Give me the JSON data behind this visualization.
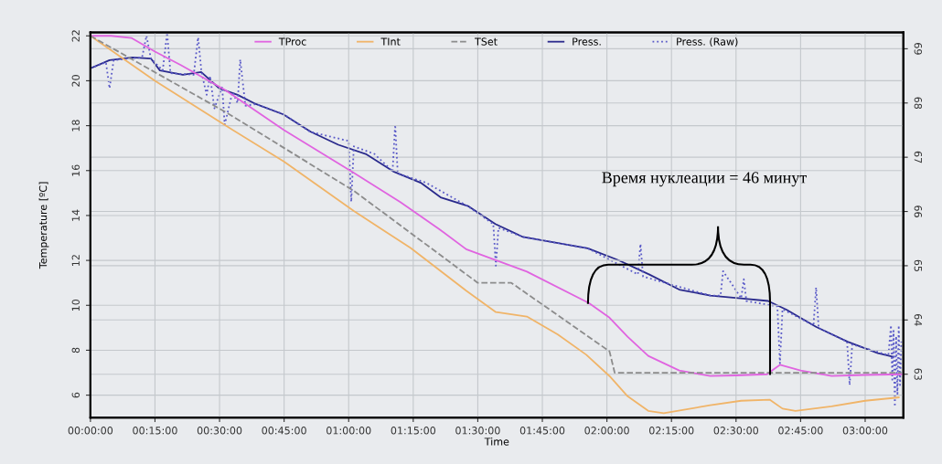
{
  "chart_data": {
    "type": "line",
    "xlabel": "Time",
    "ylabel": "Temperature [ºC]",
    "xlim": [
      0,
      3.148
    ],
    "ylim": [
      5.0,
      22.15
    ],
    "y2lim": [
      62.2,
      69.3
    ],
    "xticks": [
      {
        "value": 0,
        "label": "00:00:00"
      },
      {
        "value": 0.25,
        "label": "00:15:00"
      },
      {
        "value": 0.5,
        "label": "00:30:00"
      },
      {
        "value": 0.75,
        "label": "00:45:00"
      },
      {
        "value": 1.0,
        "label": "01:00:00"
      },
      {
        "value": 1.25,
        "label": "01:15:00"
      },
      {
        "value": 1.5,
        "label": "01:30:00"
      },
      {
        "value": 1.75,
        "label": "01:45:00"
      },
      {
        "value": 2.0,
        "label": "02:00:00"
      },
      {
        "value": 2.25,
        "label": "02:15:00"
      },
      {
        "value": 2.5,
        "label": "02:30:00"
      },
      {
        "value": 2.75,
        "label": "02:45:00"
      },
      {
        "value": 3.0,
        "label": "03:00:00"
      }
    ],
    "yticks": [
      6,
      8,
      10,
      12,
      14,
      16,
      18,
      20,
      22
    ],
    "y2ticks": [
      63,
      64,
      65,
      66,
      67,
      68,
      69
    ],
    "grid": true,
    "legend": "top",
    "marker": "none",
    "annotations": [
      "Время нуклеации = 46 минут"
    ],
    "series": [
      {
        "name": "TProc",
        "color": "#e064e0",
        "line_style": "solid",
        "x": [
          0,
          0.08,
          0.16,
          0.25,
          0.35,
          0.52,
          0.75,
          1.02,
          1.2,
          1.35,
          1.455,
          1.69,
          1.93,
          2.01,
          2.08,
          2.16,
          2.28,
          2.4,
          2.5,
          2.62,
          2.64,
          2.67,
          2.75,
          2.87,
          3.0,
          3.14
        ],
        "values": [
          22.0,
          22.0,
          21.9,
          21.3,
          20.7,
          19.6,
          17.8,
          15.9,
          14.6,
          13.4,
          12.5,
          11.5,
          10.1,
          9.45,
          8.6,
          7.75,
          7.1,
          6.85,
          6.88,
          6.93,
          7.1,
          7.35,
          7.1,
          6.85,
          6.9,
          6.93
        ]
      },
      {
        "name": "TInt",
        "color": "#f0b468",
        "line_style": "solid",
        "x": [
          0,
          0.25,
          0.524,
          0.75,
          1.02,
          1.24,
          1.455,
          1.57,
          1.69,
          1.81,
          1.92,
          2.01,
          2.08,
          2.16,
          2.22,
          2.4,
          2.52,
          2.63,
          2.68,
          2.73,
          2.87,
          3.0,
          3.13
        ],
        "values": [
          22.0,
          20.0,
          18.0,
          16.4,
          14.2,
          12.55,
          10.65,
          9.7,
          9.5,
          8.7,
          7.8,
          6.85,
          5.95,
          5.3,
          5.2,
          5.55,
          5.75,
          5.8,
          5.4,
          5.3,
          5.5,
          5.75,
          5.9
        ]
      },
      {
        "name": "TSet",
        "color": "#8c8c8c",
        "line_style": "dashed",
        "x": [
          0,
          0.524,
          1.02,
          1.5,
          1.63,
          2.01,
          2.03,
          3.14
        ],
        "values": [
          22.0,
          18.6,
          15.1,
          11.0,
          11.0,
          7.95,
          7.0,
          7.0
        ]
      },
      {
        "name": "Press.",
        "color": "#2a2a8c",
        "line_style": "solid",
        "axis": "y2",
        "x": [
          0,
          0.074,
          0.163,
          0.234,
          0.269,
          0.358,
          0.429,
          0.499,
          0.57,
          0.641,
          0.747,
          0.853,
          0.96,
          1.066,
          1.172,
          1.279,
          1.356,
          1.462,
          1.568,
          1.675,
          1.926,
          2.046,
          2.163,
          2.28,
          2.401,
          2.518,
          2.624,
          2.695,
          2.811,
          2.932,
          3.049,
          3.109
        ],
        "values": [
          68.64,
          68.79,
          68.84,
          68.82,
          68.6,
          68.52,
          68.57,
          68.27,
          68.15,
          67.98,
          67.79,
          67.47,
          67.23,
          67.06,
          66.74,
          66.53,
          66.26,
          66.1,
          65.77,
          65.53,
          65.32,
          65.1,
          64.84,
          64.56,
          64.45,
          64.4,
          64.35,
          64.19,
          63.87,
          63.6,
          63.39,
          63.32
        ]
      },
      {
        "name": "Press. (Raw)",
        "color": "#5a5ac8",
        "line_style": "dotted",
        "axis": "y2",
        "x": [
          0,
          0.06,
          0.074,
          0.09,
          0.2,
          0.217,
          0.234,
          0.28,
          0.297,
          0.31,
          0.4,
          0.417,
          0.43,
          0.45,
          0.463,
          0.48,
          0.51,
          0.52,
          0.55,
          0.57,
          0.58,
          0.6,
          0.64,
          0.75,
          0.85,
          1.0,
          1.01,
          1.02,
          1.1,
          1.17,
          1.18,
          1.19,
          1.3,
          1.46,
          1.56,
          1.57,
          1.58,
          1.675,
          1.926,
          2.12,
          2.13,
          2.14,
          2.4,
          2.44,
          2.45,
          2.52,
          2.53,
          2.54,
          2.66,
          2.67,
          2.68,
          2.8,
          2.81,
          2.82,
          2.93,
          2.94,
          2.95,
          3.09,
          3.1,
          3.105,
          3.11,
          3.115,
          3.12,
          3.125,
          3.13,
          3.135,
          3.14
        ],
        "values": [
          68.64,
          68.75,
          68.27,
          68.79,
          68.84,
          69.24,
          68.82,
          68.6,
          69.29,
          68.55,
          68.52,
          69.21,
          68.57,
          68.15,
          68.5,
          67.9,
          68.3,
          67.6,
          68.2,
          68.0,
          68.8,
          67.95,
          67.98,
          67.79,
          67.47,
          67.3,
          66.18,
          67.2,
          67.06,
          66.74,
          67.6,
          66.7,
          66.53,
          66.1,
          65.77,
          65.0,
          65.7,
          65.53,
          65.32,
          64.84,
          65.4,
          64.8,
          64.45,
          64.45,
          64.9,
          64.4,
          64.75,
          64.35,
          64.25,
          63.2,
          64.2,
          63.9,
          64.6,
          63.85,
          63.6,
          62.8,
          63.55,
          63.35,
          63.9,
          62.9,
          63.8,
          62.4,
          63.7,
          62.6,
          63.9,
          62.8,
          63.6
        ]
      }
    ]
  }
}
